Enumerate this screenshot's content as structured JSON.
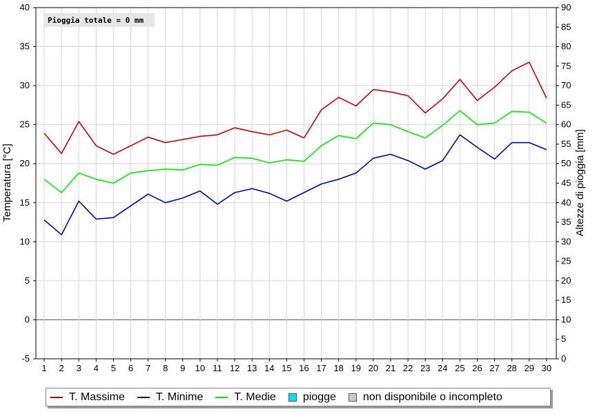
{
  "chart_data": {
    "type": "line",
    "annotation": "Pioggia totale = 0 mm",
    "ylabel": "Temperatura [°C]",
    "y2label": "Altezze di pioggia [mm]",
    "ylim": [
      -5,
      40
    ],
    "y_ticks": [
      -5,
      0,
      5,
      10,
      15,
      20,
      25,
      30,
      35,
      40
    ],
    "y2lim": [
      0,
      90
    ],
    "y2_ticks": [
      0,
      5,
      10,
      15,
      20,
      25,
      30,
      35,
      40,
      45,
      50,
      55,
      60,
      65,
      70,
      75,
      80,
      85,
      90
    ],
    "x": [
      1,
      2,
      3,
      4,
      5,
      6,
      7,
      8,
      9,
      10,
      11,
      12,
      13,
      14,
      15,
      16,
      17,
      18,
      19,
      20,
      21,
      22,
      23,
      24,
      25,
      26,
      27,
      28,
      29,
      30
    ],
    "grid": true,
    "legend_position": "bottom",
    "series": [
      {
        "name": "T. Massime",
        "color": "#cc0000",
        "values": [
          23.9,
          21.3,
          25.4,
          22.3,
          21.2,
          22.3,
          23.4,
          22.7,
          23.1,
          23.5,
          23.7,
          24.6,
          24.1,
          23.7,
          24.3,
          23.3,
          26.9,
          28.5,
          27.4,
          29.5,
          29.2,
          28.7,
          26.5,
          28.3,
          30.8,
          28.1,
          29.8,
          31.9,
          33.0,
          28.4
        ]
      },
      {
        "name": "T. Minime",
        "color": "#0000bb",
        "values": [
          12.8,
          10.9,
          15.2,
          12.9,
          13.1,
          14.6,
          16.1,
          15.0,
          15.6,
          16.5,
          14.8,
          16.3,
          16.8,
          16.2,
          15.2,
          16.3,
          17.4,
          18.0,
          18.8,
          20.7,
          21.2,
          20.4,
          19.3,
          20.4,
          23.7,
          22.1,
          20.6,
          22.7,
          22.7,
          21.8
        ]
      },
      {
        "name": "T. Medie",
        "color": "#00ee00",
        "values": [
          18.0,
          16.3,
          18.8,
          18.0,
          17.5,
          18.8,
          19.1,
          19.3,
          19.2,
          19.9,
          19.8,
          20.8,
          20.7,
          20.1,
          20.5,
          20.3,
          22.3,
          23.6,
          23.2,
          25.2,
          25.0,
          24.1,
          23.3,
          24.9,
          26.8,
          25.0,
          25.2,
          26.7,
          26.6,
          25.2
        ]
      }
    ],
    "legend_extra": [
      {
        "name": "piogge",
        "color": "#00e5ee"
      },
      {
        "name": "non disponibile o incompleto",
        "color": "#c8c8c8"
      }
    ]
  }
}
